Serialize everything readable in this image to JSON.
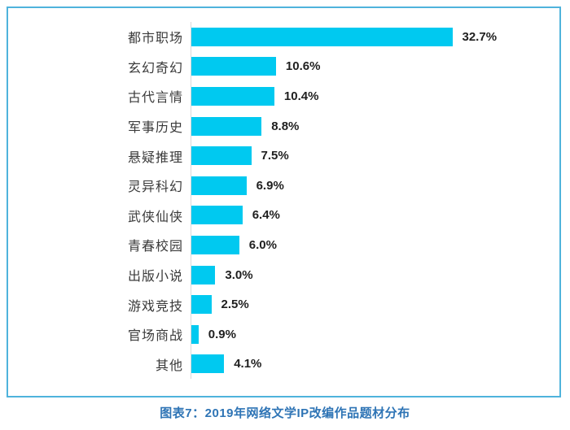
{
  "chart_data": {
    "type": "bar",
    "orientation": "horizontal",
    "title": "图表7：2019年网络文学IP改编作品题材分布",
    "xlabel": "",
    "ylabel": "",
    "categories": [
      "都市职场",
      "玄幻奇幻",
      "古代言情",
      "军事历史",
      "悬疑推理",
      "灵异科幻",
      "武侠仙侠",
      "青春校园",
      "出版小说",
      "游戏竞技",
      "官场商战",
      "其他"
    ],
    "values": [
      32.7,
      10.6,
      10.4,
      8.8,
      7.5,
      6.9,
      6.4,
      6.0,
      3.0,
      2.5,
      0.9,
      4.1
    ],
    "value_labels": [
      "32.7%",
      "10.6%",
      "10.4%",
      "8.8%",
      "7.5%",
      "6.9%",
      "6.4%",
      "6.0%",
      "3.0%",
      "2.5%",
      "0.9%",
      "4.1%"
    ],
    "xlim": [
      0,
      33.5
    ],
    "grid": false,
    "legend": false,
    "data_labels": "outside-end"
  },
  "caption": "图表7：2019年网络文学IP改编作品题材分布",
  "colors": {
    "bar": "#00C9F0",
    "border": "#4FB3DC",
    "axis": "#D9D9D9",
    "label_text": "#3A3A3A",
    "value_text": "#1F1F1F",
    "caption_text": "#2E74B5",
    "background": "#FFFFFF"
  }
}
